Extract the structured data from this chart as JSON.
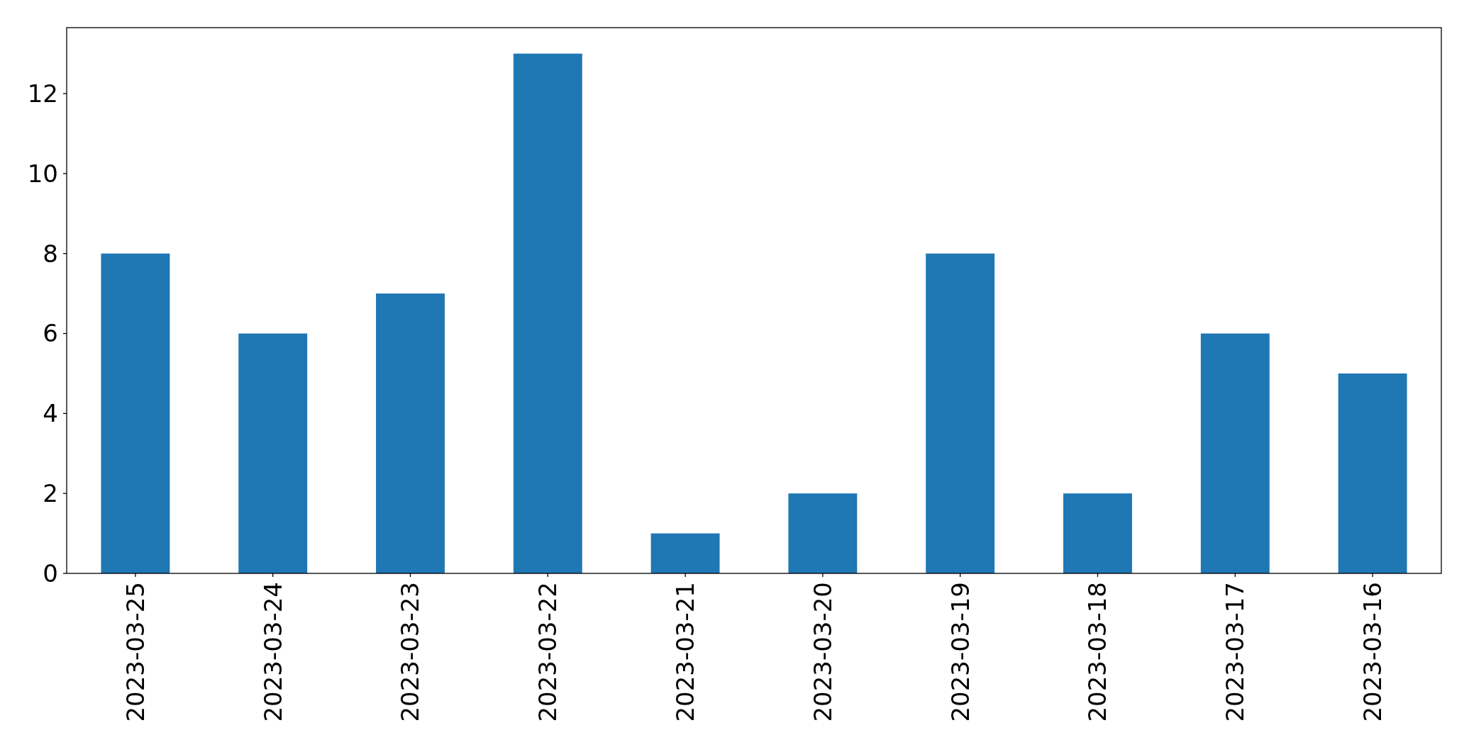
{
  "chart_data": {
    "type": "bar",
    "categories": [
      "2023-03-25",
      "2023-03-24",
      "2023-03-23",
      "2023-03-22",
      "2023-03-21",
      "2023-03-20",
      "2023-03-19",
      "2023-03-18",
      "2023-03-17",
      "2023-03-16"
    ],
    "values": [
      8,
      6,
      7,
      13,
      1,
      2,
      8,
      2,
      6,
      5
    ],
    "color": "#1f77b4",
    "ylim": [
      0,
      13.65
    ],
    "yticks": [
      0,
      2,
      4,
      6,
      8,
      10,
      12
    ]
  }
}
